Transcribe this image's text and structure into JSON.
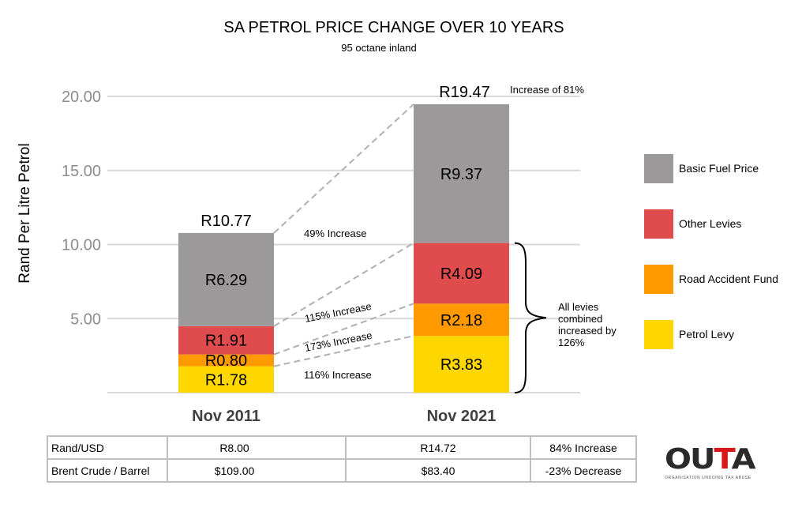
{
  "chart_data": {
    "type": "bar",
    "stacked": true,
    "title": "SA PETROL PRICE CHANGE OVER 10 YEARS",
    "subtitle": "95 octane inland",
    "xlabel": "",
    "ylabel": "Rand Per Litre Petrol",
    "ylim": [
      0,
      20
    ],
    "yticks": [
      5,
      10,
      15,
      20
    ],
    "ytick_labels": [
      "5.00",
      "10.00",
      "15.00",
      "20.00"
    ],
    "grid": true,
    "legend_position": "right",
    "categories": [
      "Nov 2011",
      "Nov 2021"
    ],
    "series": [
      {
        "name": "Petrol Levy",
        "color": "#ffd700",
        "values": [
          1.78,
          3.83
        ],
        "labels": [
          "R1.78",
          "R3.83"
        ]
      },
      {
        "name": "Road Accident Fund",
        "color": "#ff9900",
        "values": [
          0.8,
          2.18
        ],
        "labels": [
          "R0.80",
          "R2.18"
        ]
      },
      {
        "name": "Other Levies",
        "color": "#e04b4d",
        "values": [
          1.91,
          4.09
        ],
        "labels": [
          "R1.91",
          "R4.09"
        ]
      },
      {
        "name": "Basic Fuel Price",
        "color": "#9b999a",
        "values": [
          6.29,
          9.37
        ],
        "labels": [
          "R6.29",
          "R9.37"
        ]
      }
    ],
    "totals": [
      10.77,
      19.47
    ],
    "total_labels": [
      "R10.77",
      "R19.47"
    ],
    "annotations": {
      "total_change": "Increase of 81%",
      "segment_changes": [
        {
          "series": "Basic Fuel Price",
          "text": "49% Increase"
        },
        {
          "series": "Other Levies",
          "text": "115% Increase"
        },
        {
          "series": "Road Accident Fund",
          "text": "173% Increase"
        },
        {
          "series": "Petrol Levy",
          "text": "116% Increase"
        }
      ],
      "levies_note": [
        "All levies",
        "combined",
        "increased by",
        "126%"
      ]
    },
    "legend_order": [
      "Basic Fuel Price",
      "Other Levies",
      "Road Accident Fund",
      "Petrol Levy"
    ]
  },
  "table": {
    "rows": [
      {
        "label": "Rand/USD",
        "y2011": "R8.00",
        "y2021": "R14.72",
        "change": "84% Increase"
      },
      {
        "label": "Brent Crude / Barrel",
        "y2011": "$109.00",
        "y2021": "$83.40",
        "change": "-23% Decrease"
      }
    ]
  },
  "logo": {
    "word_dark1": "OU",
    "word_red": "T",
    "word_dark2": "A",
    "tagline": "ORGANISATION UNDOING TAX ABUSE"
  }
}
